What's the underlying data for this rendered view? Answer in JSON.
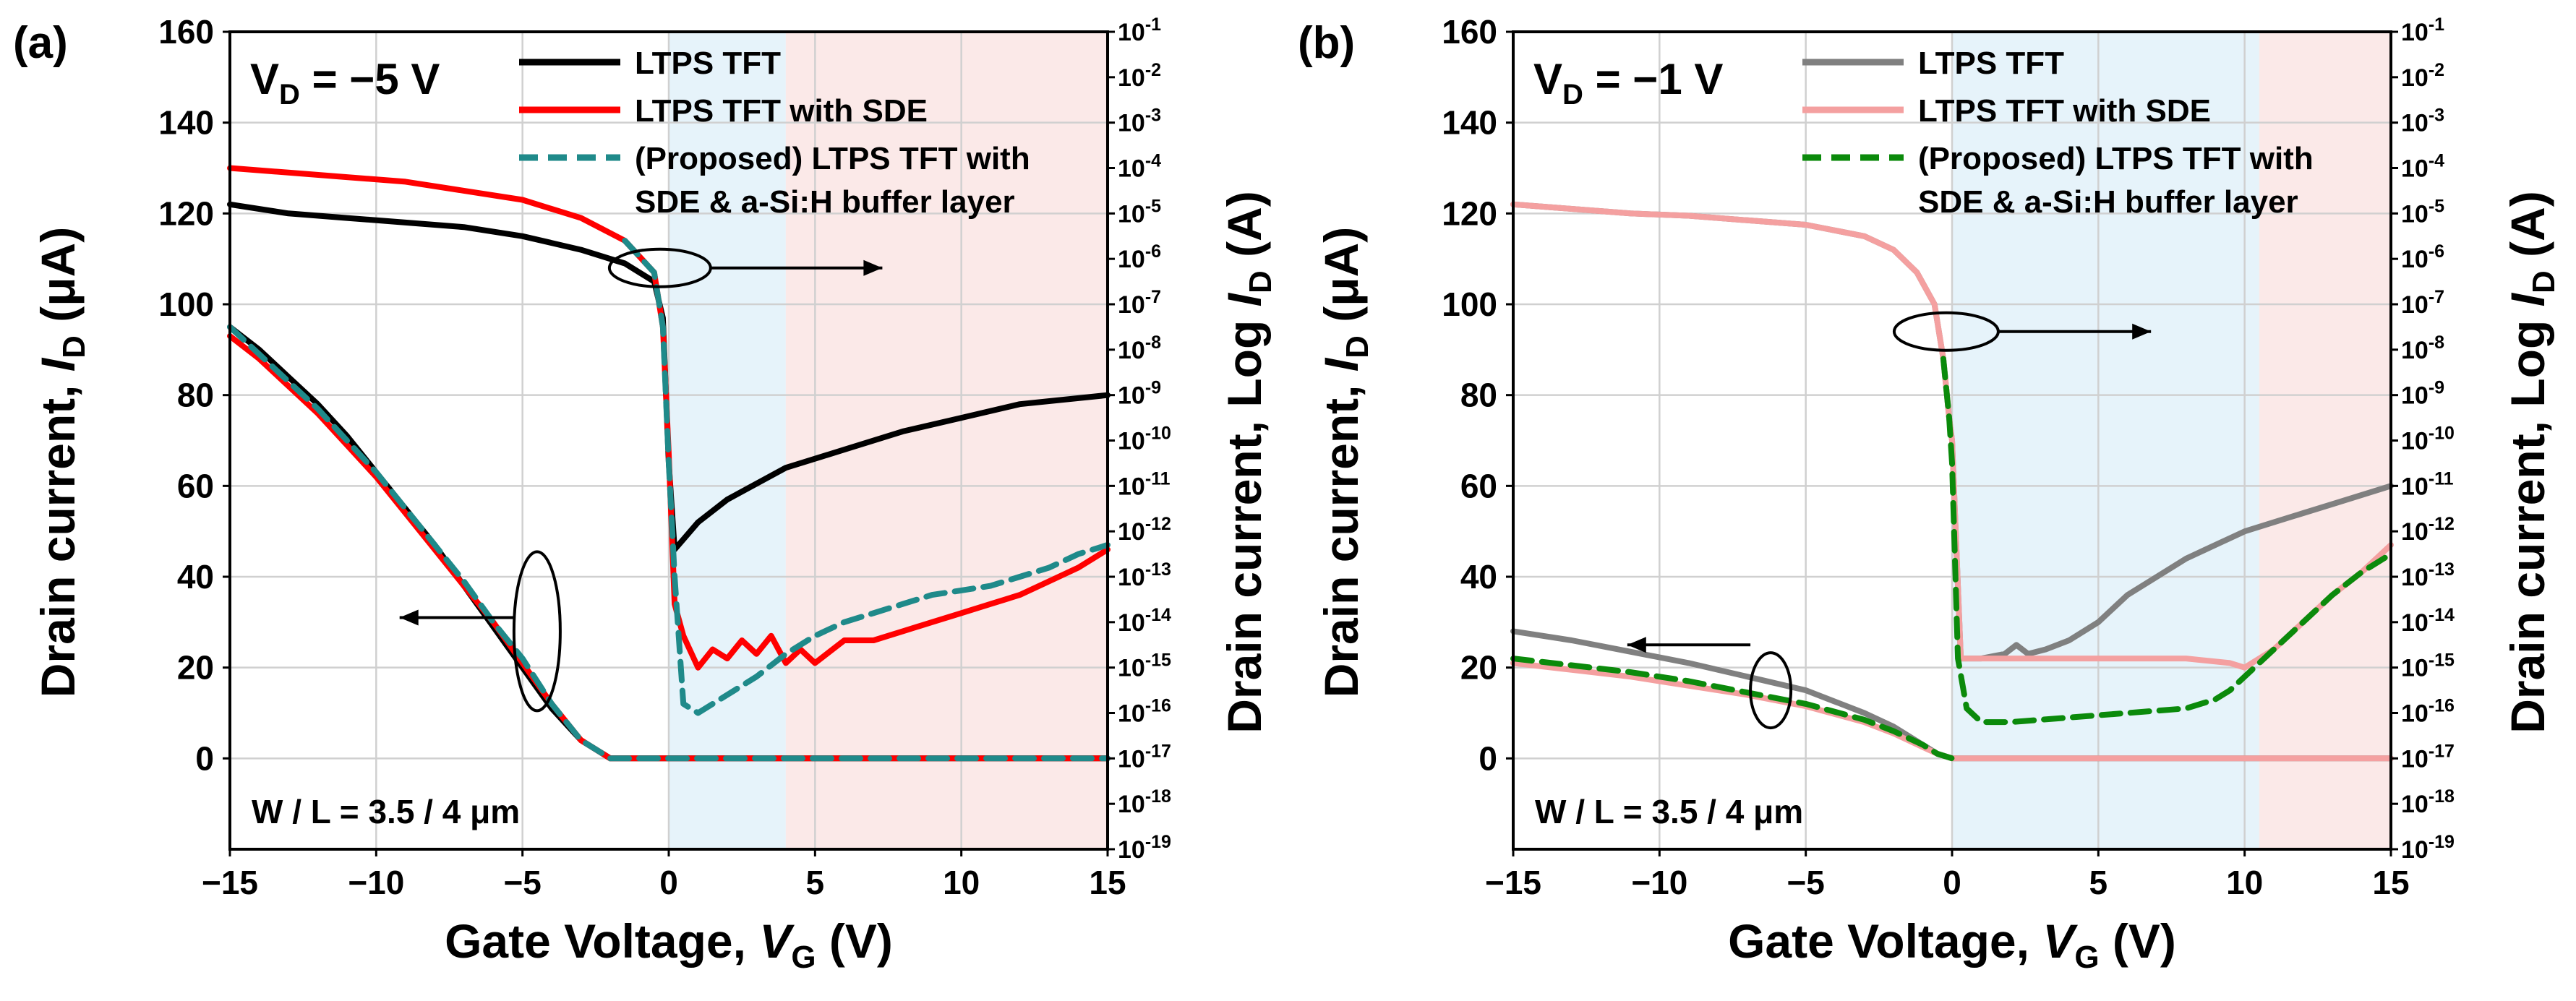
{
  "chart_data": [
    {
      "panel_label": "(a)",
      "type": "line",
      "condition": "VD = −5 V",
      "condition_parts": [
        "V",
        "D",
        " = −5 V"
      ],
      "geometry_note": "W / L = 3.5 / 4 μm",
      "xlabel": "Gate Voltage, VG (V)",
      "ylabel_left": "Drain current, ID (μA)",
      "ylabel_right": "Drain current, Log ID (A)",
      "xlim": [
        -15,
        15
      ],
      "ylim_left": [
        -20,
        160
      ],
      "ylim_right_log10": [
        -19,
        -1
      ],
      "x_ticks": [
        -15,
        -10,
        -5,
        0,
        5,
        10,
        15
      ],
      "x_tick_labels": [
        "−15",
        "−10",
        "−5",
        "0",
        "5",
        "10",
        "15"
      ],
      "y_left_ticks": [
        0,
        20,
        40,
        60,
        80,
        100,
        120,
        140,
        160
      ],
      "y_left_tick_labels": [
        "0",
        "20",
        "40",
        "60",
        "80",
        "100",
        "120",
        "140",
        "160"
      ],
      "y_right_exponents": [
        -1,
        -2,
        -3,
        -4,
        -5,
        -6,
        -7,
        -8,
        -9,
        -10,
        -11,
        -12,
        -13,
        -14,
        -15,
        -16,
        -17,
        -18,
        -19
      ],
      "y_right_tick_labels": [
        "10-1",
        "10-2",
        "10-3",
        "10-4",
        "10-5",
        "10-6",
        "10-7",
        "10-8",
        "10-9",
        "10-10",
        "10-11",
        "10-12",
        "10-13",
        "10-14",
        "10-15",
        "10-16",
        "10-17",
        "10-18",
        "10-19"
      ],
      "shaded_regions": [
        {
          "x0": 0,
          "x1": 4,
          "color": "#e6f3fa"
        },
        {
          "x0": 4,
          "x1": 15,
          "color": "#fbe9e8"
        }
      ],
      "legend": [
        {
          "label": "LTPS TFT",
          "color": "#000000",
          "dash": "solid"
        },
        {
          "label": "LTPS TFT with SDE",
          "color": "#ff0000",
          "dash": "solid"
        },
        {
          "label": "(Proposed) LTPS TFT with",
          "label_line2": "SDE & a-Si:H buffer layer",
          "color": "#1f8a8a",
          "dash": "dashed"
        }
      ],
      "series": [
        {
          "name": "LTPS TFT",
          "scale": "linear",
          "color": "#000000",
          "dash": "solid",
          "x": [
            -15,
            -14,
            -13,
            -12,
            -11,
            -10,
            -9,
            -8,
            -7,
            -6,
            -5,
            -4,
            -3,
            -2,
            -1,
            0,
            5,
            10,
            15
          ],
          "y": [
            95,
            90,
            84,
            78,
            71,
            63,
            55,
            47,
            38,
            29,
            20,
            11,
            4,
            0,
            0,
            0,
            0,
            0,
            0
          ]
        },
        {
          "name": "LTPS TFT with SDE",
          "scale": "linear",
          "color": "#ff0000",
          "dash": "solid",
          "x": [
            -15,
            -14,
            -13,
            -12,
            -11,
            -10,
            -9,
            -8,
            -7,
            -6,
            -5,
            -4,
            -3,
            -2,
            -1,
            0,
            5,
            10,
            15
          ],
          "y": [
            93,
            88,
            82,
            76,
            69,
            62,
            54,
            46,
            38,
            30,
            21,
            12,
            4,
            0,
            0,
            0,
            0,
            0,
            0
          ]
        },
        {
          "name": "(Proposed) LTPS TFT with SDE & a-Si:H buffer layer",
          "scale": "linear",
          "color": "#1f8a8a",
          "dash": "dashed",
          "x": [
            -15,
            -14,
            -13,
            -12,
            -11,
            -10,
            -9,
            -8,
            -7,
            -6,
            -5,
            -4,
            -3,
            -2,
            -1,
            0,
            5,
            10,
            15
          ],
          "y": [
            95,
            89,
            83,
            77,
            70,
            63,
            55,
            47,
            39,
            30,
            22,
            12,
            4,
            0,
            0,
            0,
            0,
            0,
            0
          ]
        },
        {
          "name": "LTPS TFT",
          "scale": "log",
          "color": "#000000",
          "dash": "solid",
          "x": [
            -15,
            -13,
            -11,
            -9,
            -7,
            -5,
            -3,
            -1.5,
            -0.5,
            -0.2,
            0,
            0.2,
            1,
            2,
            4,
            6,
            8,
            10,
            12,
            15
          ],
          "y": [
            -4.8,
            -5.0,
            -5.1,
            -5.2,
            -5.3,
            -5.5,
            -5.8,
            -6.1,
            -6.5,
            -7.3,
            -10.5,
            -12.4,
            -11.8,
            -11.3,
            -10.6,
            -10.2,
            -9.8,
            -9.5,
            -9.2,
            -9.0
          ]
        },
        {
          "name": "LTPS TFT with SDE",
          "scale": "log",
          "color": "#ff0000",
          "dash": "solid",
          "x": [
            -15,
            -13,
            -11,
            -9,
            -7,
            -5,
            -3,
            -1.5,
            -0.5,
            -0.2,
            0,
            0.2,
            0.5,
            1.0,
            1.5,
            2.0,
            2.5,
            3.0,
            3.5,
            4.0,
            4.5,
            5,
            6,
            7,
            8,
            9,
            10,
            11,
            12,
            13,
            14,
            15
          ],
          "y": [
            -4.0,
            -4.1,
            -4.2,
            -4.3,
            -4.5,
            -4.7,
            -5.1,
            -5.6,
            -6.3,
            -7.5,
            -10.3,
            -13.6,
            -14.3,
            -15.0,
            -14.6,
            -14.8,
            -14.4,
            -14.7,
            -14.3,
            -14.9,
            -14.6,
            -14.9,
            -14.4,
            -14.4,
            -14.2,
            -14.0,
            -13.8,
            -13.6,
            -13.4,
            -13.1,
            -12.8,
            -12.4
          ]
        },
        {
          "name": "(Proposed) LTPS TFT with SDE & a-Si:H buffer layer",
          "scale": "log",
          "color": "#1f8a8a",
          "dash": "dashed",
          "x": [
            -1.5,
            -0.5,
            -0.2,
            0,
            0.2,
            0.5,
            1,
            2,
            3,
            4,
            5,
            6,
            7,
            8,
            9,
            10,
            11,
            12,
            13,
            14,
            15
          ],
          "y": [
            -5.6,
            -6.3,
            -7.5,
            -10.5,
            -13.0,
            -15.8,
            -16.0,
            -15.6,
            -15.2,
            -14.7,
            -14.3,
            -14.0,
            -13.8,
            -13.6,
            -13.4,
            -13.3,
            -13.2,
            -13.0,
            -12.8,
            -12.5,
            -12.3
          ]
        }
      ],
      "annotations": [
        {
          "type": "ellipse-arrow",
          "target": "log-scale curves",
          "direction": "right"
        },
        {
          "type": "ellipse-arrow",
          "target": "linear-scale curves",
          "direction": "left"
        }
      ]
    },
    {
      "panel_label": "(b)",
      "type": "line",
      "condition": "VD = −1 V",
      "condition_parts": [
        "V",
        "D",
        " = −1 V"
      ],
      "geometry_note": "W / L = 3.5 / 4 μm",
      "xlabel": "Gate Voltage, VG (V)",
      "ylabel_left": "Drain current, ID (μA)",
      "ylabel_right": "Drain current, Log ID (A)",
      "xlim": [
        -15,
        15
      ],
      "ylim_left": [
        -20,
        160
      ],
      "ylim_right_log10": [
        -19,
        -1
      ],
      "x_ticks": [
        -15,
        -10,
        -5,
        0,
        5,
        10,
        15
      ],
      "x_tick_labels": [
        "−15",
        "−10",
        "−5",
        "0",
        "5",
        "10",
        "15"
      ],
      "y_left_ticks": [
        0,
        20,
        40,
        60,
        80,
        100,
        120,
        140,
        160
      ],
      "y_left_tick_labels": [
        "0",
        "20",
        "40",
        "60",
        "80",
        "100",
        "120",
        "140",
        "160"
      ],
      "y_right_exponents": [
        -1,
        -2,
        -3,
        -4,
        -5,
        -6,
        -7,
        -8,
        -9,
        -10,
        -11,
        -12,
        -13,
        -14,
        -15,
        -16,
        -17,
        -18,
        -19
      ],
      "y_right_tick_labels": [
        "10-1",
        "10-2",
        "10-3",
        "10-4",
        "10-5",
        "10-6",
        "10-7",
        "10-8",
        "10-9",
        "10-10",
        "10-11",
        "10-12",
        "10-13",
        "10-14",
        "10-15",
        "10-16",
        "10-17",
        "10-18",
        "10-19"
      ],
      "shaded_regions": [
        {
          "x0": 0,
          "x1": 10.5,
          "color": "#e6f3fa"
        },
        {
          "x0": 10.5,
          "x1": 15,
          "color": "#fbe9e8"
        }
      ],
      "legend": [
        {
          "label": "LTPS TFT",
          "color": "#808080",
          "dash": "solid"
        },
        {
          "label": "LTPS TFT with SDE",
          "color": "#f4a0a0",
          "dash": "solid"
        },
        {
          "label": "(Proposed) LTPS TFT with",
          "label_line2": "SDE & a-Si:H buffer layer",
          "color": "#0b8a0b",
          "dash": "dashed"
        }
      ],
      "series": [
        {
          "name": "LTPS TFT",
          "scale": "linear",
          "color": "#808080",
          "dash": "solid",
          "x": [
            -15,
            -13,
            -11,
            -9,
            -7,
            -5,
            -3,
            -2,
            -1,
            -0.5,
            0,
            5,
            10,
            15
          ],
          "y": [
            28,
            26,
            23.5,
            21,
            18,
            15,
            10,
            7,
            3,
            1,
            0,
            0,
            0,
            0
          ]
        },
        {
          "name": "LTPS TFT with SDE",
          "scale": "linear",
          "color": "#f4a0a0",
          "dash": "solid",
          "x": [
            -15,
            -13,
            -11,
            -9,
            -7,
            -5,
            -3,
            -2,
            -1,
            -0.5,
            0,
            5,
            10,
            15
          ],
          "y": [
            21,
            19.5,
            18,
            16,
            14,
            11.5,
            8,
            5.5,
            2.5,
            1,
            0,
            0,
            0,
            0
          ]
        },
        {
          "name": "(Proposed) LTPS TFT with SDE & a-Si:H buffer layer",
          "scale": "linear",
          "color": "#0b8a0b",
          "dash": "dashed",
          "x": [
            -15,
            -13,
            -11,
            -9,
            -7,
            -5,
            -3,
            -2,
            -1,
            -0.5,
            0
          ],
          "y": [
            22,
            20.5,
            19,
            17,
            14.5,
            12,
            8.5,
            6,
            3,
            1,
            0
          ]
        },
        {
          "name": "LTPS TFT",
          "scale": "log",
          "color": "#808080",
          "dash": "solid",
          "x": [
            -15,
            -13,
            -11,
            -9,
            -7,
            -5,
            -3,
            -2,
            -1.2,
            -0.6,
            -0.3,
            -0.1,
            0,
            0.3,
            1,
            1.8,
            2.2,
            2.6,
            3.2,
            4,
            5,
            6,
            7,
            8,
            9,
            10,
            11,
            12,
            13,
            15
          ],
          "y": [
            -4.8,
            -4.9,
            -5.0,
            -5.05,
            -5.15,
            -5.25,
            -5.5,
            -5.8,
            -6.3,
            -7.0,
            -8.2,
            -9.5,
            -10.0,
            -14.8,
            -14.8,
            -14.7,
            -14.5,
            -14.7,
            -14.6,
            -14.4,
            -14.0,
            -13.4,
            -13.0,
            -12.6,
            -12.3,
            -12.0,
            -11.8,
            -11.6,
            -11.4,
            -11.0
          ]
        },
        {
          "name": "LTPS TFT with SDE",
          "scale": "log",
          "color": "#f4a0a0",
          "dash": "solid",
          "x": [
            -15,
            -13,
            -11,
            -9,
            -7,
            -5,
            -3,
            -2,
            -1.2,
            -0.6,
            -0.3,
            -0.1,
            0,
            0.3,
            2,
            4,
            6,
            8,
            9.5,
            10,
            10.5,
            11,
            12,
            13,
            14,
            15
          ],
          "y": [
            -4.8,
            -4.9,
            -5.0,
            -5.05,
            -5.15,
            -5.25,
            -5.5,
            -5.8,
            -6.3,
            -7.0,
            -8.2,
            -9.5,
            -10.0,
            -14.8,
            -14.8,
            -14.8,
            -14.8,
            -14.8,
            -14.9,
            -15.0,
            -14.8,
            -14.6,
            -14.0,
            -13.4,
            -12.9,
            -12.3
          ]
        },
        {
          "name": "(Proposed) LTPS TFT with SDE & a-Si:H buffer layer",
          "scale": "log",
          "color": "#0b8a0b",
          "dash": "dashed",
          "x": [
            -0.3,
            -0.1,
            0,
            0.2,
            0.5,
            1,
            2,
            4,
            6,
            8,
            9,
            9.5,
            10,
            10.5,
            11,
            12,
            13,
            14,
            15
          ],
          "y": [
            -8.2,
            -9.5,
            -10.5,
            -14.8,
            -15.9,
            -16.2,
            -16.2,
            -16.1,
            -16.0,
            -15.9,
            -15.7,
            -15.5,
            -15.2,
            -14.9,
            -14.6,
            -14.0,
            -13.4,
            -12.9,
            -12.5
          ]
        }
      ],
      "annotations": [
        {
          "type": "ellipse-arrow",
          "target": "log-scale curves",
          "direction": "right"
        },
        {
          "type": "ellipse-arrow",
          "target": "linear-scale curves",
          "direction": "left"
        }
      ]
    }
  ]
}
